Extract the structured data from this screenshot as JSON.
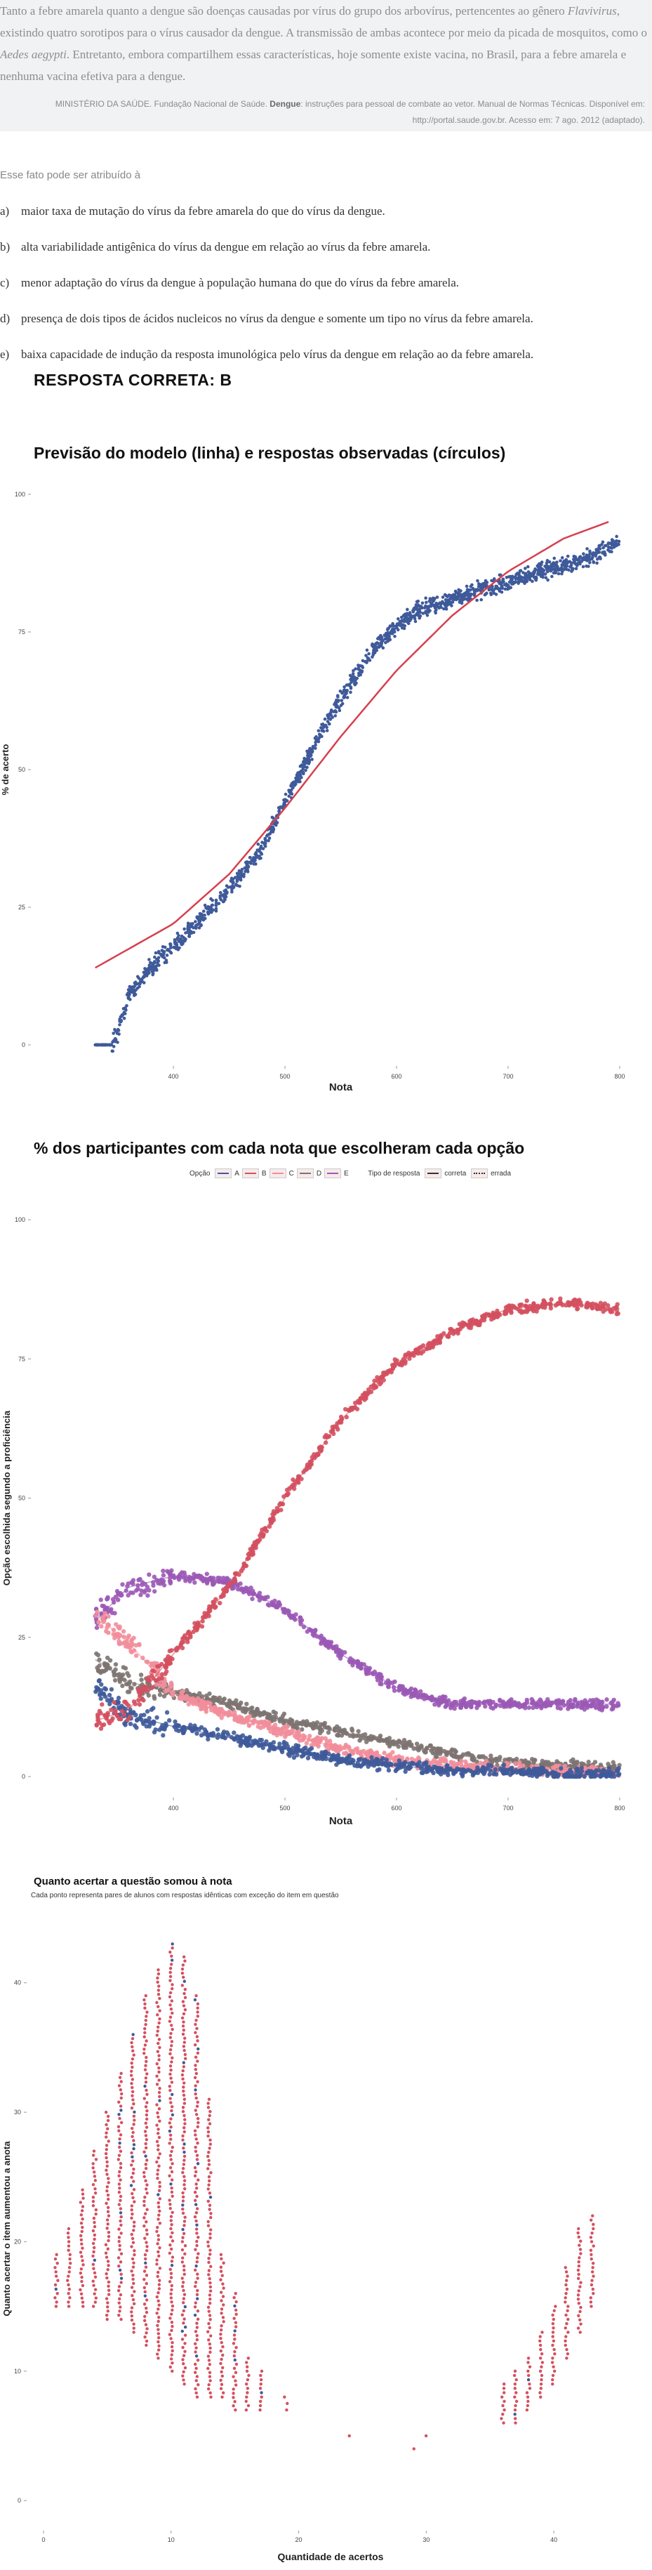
{
  "context": {
    "html": "Tanto a febre amarela quanto a dengue são doenças causadas por vírus do grupo dos arbovírus, pertencentes ao gênero <i>Flavivirus</i>, existindo quatro sorotipos para o vírus causador da dengue. A transmissão de ambas acontece por meio da picada de mosquitos, como o <i>Aedes aegypti</i>. Entretanto, embora compartilhem essas características, hoje somente existe vacina, no Brasil, para a febre amarela e nenhuma vacina efetiva para a dengue.",
    "reference_prefix": "MINISTÉRIO DA SAÚDE. Fundação Nacional de Saúde. ",
    "reference_bold": "Dengue",
    "reference_suffix": ": instruções para pessoal de combate ao vetor. Manual de Normas Técnicas. Disponível em: http://portal.saude.gov.br. Acesso em: 7 ago. 2012 (adaptado)."
  },
  "question": {
    "stem": "Esse fato pode ser atribuído à",
    "options": [
      {
        "letter": "a)",
        "text": "maior taxa de mutação do vírus da febre amarela do que do vírus da dengue."
      },
      {
        "letter": "b)",
        "text": "alta variabilidade antigênica do vírus da dengue em relação ao vírus da febre amarela."
      },
      {
        "letter": "c)",
        "text": "menor adaptação do vírus da dengue à população humana do que do vírus da febre amarela."
      },
      {
        "letter": "d)",
        "text": "presença de dois tipos de ácidos nucleicos no vírus da dengue e somente um tipo no vírus da febre amarela."
      },
      {
        "letter": "e)",
        "text": "baixa capacidade de indução da resposta imunológica pelo vírus da dengue em relação ao da febre amarela."
      }
    ],
    "answer_label": "RESPOSTA CORRETA: B"
  },
  "colors": {
    "blue": "#3f5a9a",
    "red": "#d4505f",
    "pink": "#f28e9b",
    "purple": "#9b59b6",
    "gray": "#7d7472",
    "line": "#d6404e"
  },
  "chart_data": [
    {
      "type": "scatter",
      "title": "Previsão do modelo (linha) e respostas observadas (círculos)",
      "xlabel": "Nota",
      "ylabel": "% de acerto",
      "xlim": [
        300,
        800
      ],
      "ylim": [
        0,
        100
      ],
      "x_ticks": [
        400,
        500,
        600,
        700,
        800
      ],
      "y_ticks": [
        0,
        25,
        50,
        75,
        100
      ],
      "grid": false,
      "model_line": {
        "x": [
          330,
          400,
          450,
          500,
          550,
          600,
          650,
          700,
          750,
          790
        ],
        "y": [
          14,
          22,
          31,
          43,
          56,
          68,
          78,
          86,
          92,
          95
        ]
      },
      "observed": {
        "x": [
          330,
          345,
          350,
          360,
          380,
          400,
          420,
          450,
          480,
          500,
          520,
          550,
          580,
          600,
          620,
          650,
          680,
          700,
          730,
          750,
          780,
          795
        ],
        "y": [
          0,
          0,
          2,
          9,
          14,
          18,
          22,
          28,
          36,
          44,
          52,
          63,
          72,
          76,
          79,
          81,
          83,
          84,
          86,
          87,
          89,
          91
        ]
      }
    },
    {
      "type": "scatter",
      "title": "% dos participantes com cada nota que escolheram cada opção",
      "xlabel": "Nota",
      "ylabel": "Opção escolhida segundo a proficiência",
      "xlim": [
        300,
        800
      ],
      "ylim": [
        0,
        100
      ],
      "x_ticks": [
        400,
        500,
        600,
        700,
        800
      ],
      "y_ticks": [
        0,
        25,
        50,
        75,
        100
      ],
      "legend": {
        "option_title": "Opção",
        "options": [
          "A",
          "B",
          "C",
          "D",
          "E"
        ],
        "type_title": "Tipo de resposta",
        "types": [
          "correta",
          "errada"
        ],
        "placement": "top"
      },
      "categories_x": [
        330,
        360,
        400,
        450,
        500,
        550,
        600,
        650,
        700,
        750,
        800
      ],
      "series": [
        {
          "name": "A",
          "color": "#3f5a9a",
          "values": [
            16,
            11,
            9,
            7,
            5,
            3,
            2,
            1,
            1,
            0.5,
            0.3
          ]
        },
        {
          "name": "B",
          "color": "#d4505f",
          "values": [
            10,
            12,
            22,
            34,
            50,
            64,
            74,
            80,
            84,
            85,
            84
          ]
        },
        {
          "name": "C",
          "color": "#f28e9b",
          "values": [
            29,
            24,
            15,
            11,
            8,
            5,
            3,
            2,
            1.5,
            1,
            0.8
          ]
        },
        {
          "name": "D",
          "color": "#7d7472",
          "values": [
            21,
            17,
            15,
            13,
            10,
            8,
            6,
            4,
            2.5,
            2,
            1.5
          ]
        },
        {
          "name": "E",
          "color": "#9b59b6",
          "values": [
            28,
            34,
            36,
            35,
            30,
            22,
            16,
            13,
            13,
            13,
            13
          ]
        }
      ]
    },
    {
      "type": "scatter",
      "title": "Quanto acertar a questão somou à nota",
      "subtitle": "Cada ponto representa pares de alunos com respostas idênticas com exceção do item em questão",
      "xlabel": "Quantidade de acertos",
      "ylabel": "Quanto acertar o item aumentou a anota",
      "xlim": [
        0,
        45
      ],
      "ylim": [
        -2,
        44
      ],
      "x_ticks": [
        0,
        10,
        20,
        30,
        40
      ],
      "y_ticks": [
        0,
        10,
        20,
        30,
        40
      ],
      "columns": [
        {
          "x": 1,
          "ymin": 15,
          "ymax": 19
        },
        {
          "x": 2,
          "ymin": 15,
          "ymax": 21
        },
        {
          "x": 3,
          "ymin": 15,
          "ymax": 24
        },
        {
          "x": 4,
          "ymin": 15,
          "ymax": 27
        },
        {
          "x": 5,
          "ymin": 14,
          "ymax": 30
        },
        {
          "x": 6,
          "ymin": 14,
          "ymax": 33
        },
        {
          "x": 7,
          "ymin": 13,
          "ymax": 36
        },
        {
          "x": 8,
          "ymin": 12,
          "ymax": 39
        },
        {
          "x": 9,
          "ymin": 11,
          "ymax": 41
        },
        {
          "x": 10,
          "ymin": 10,
          "ymax": 43
        },
        {
          "x": 11,
          "ymin": 9,
          "ymax": 42
        },
        {
          "x": 12,
          "ymin": 8,
          "ymax": 39
        },
        {
          "x": 13,
          "ymin": 8,
          "ymax": 31
        },
        {
          "x": 14,
          "ymin": 8,
          "ymax": 19
        },
        {
          "x": 15,
          "ymin": 7,
          "ymax": 16
        },
        {
          "x": 16,
          "ymin": 7,
          "ymax": 11
        },
        {
          "x": 17,
          "ymin": 7,
          "ymax": 10
        },
        {
          "x": 19,
          "ymin": 7,
          "ymax": 8
        },
        {
          "x": 24,
          "ymin": 5,
          "ymax": 5
        },
        {
          "x": 29,
          "ymin": 4,
          "ymax": 4
        },
        {
          "x": 30,
          "ymin": 5,
          "ymax": 5
        },
        {
          "x": 36,
          "ymin": 6,
          "ymax": 9
        },
        {
          "x": 37,
          "ymin": 6,
          "ymax": 10
        },
        {
          "x": 38,
          "ymin": 7,
          "ymax": 11
        },
        {
          "x": 39,
          "ymin": 8,
          "ymax": 13
        },
        {
          "x": 40,
          "ymin": 9,
          "ymax": 15
        },
        {
          "x": 41,
          "ymin": 11,
          "ymax": 18
        },
        {
          "x": 42,
          "ymin": 13,
          "ymax": 21
        },
        {
          "x": 43,
          "ymin": 15,
          "ymax": 22
        }
      ]
    }
  ]
}
